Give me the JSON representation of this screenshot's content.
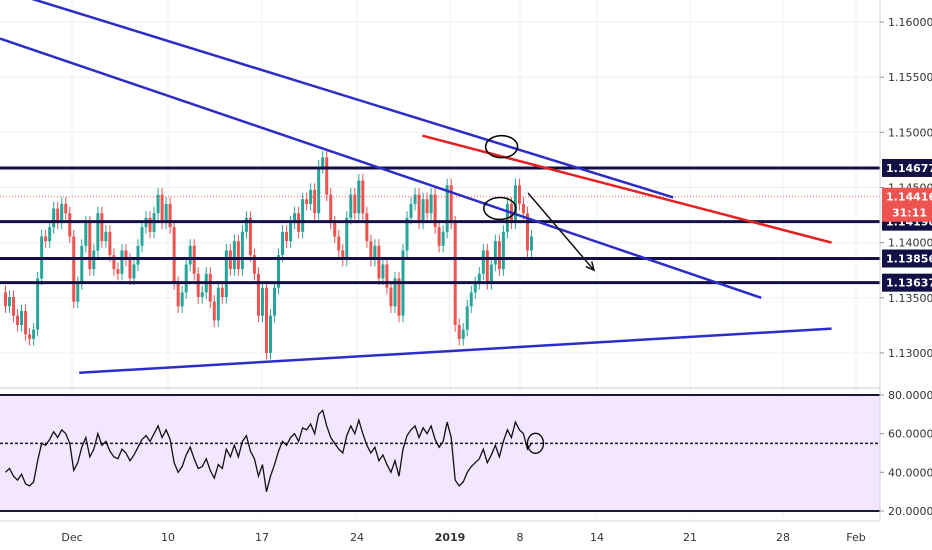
{
  "chart_data": [
    {
      "type": "candlestick",
      "instrument_hint": "price",
      "price_axis": {
        "ylim": [
          1.127,
          1.162
        ],
        "ticks": [
          "1.16000",
          "1.15500",
          "1.15000",
          "1.14500",
          "1.14000",
          "1.13500",
          "1.13000"
        ],
        "tick_values": [
          1.16,
          1.155,
          1.15,
          1.145,
          1.14,
          1.135,
          1.13
        ]
      },
      "x_axis": {
        "labels": [
          "Dec",
          "10",
          "17",
          "24",
          "2019",
          "8",
          "14",
          "21",
          "28",
          "Feb"
        ],
        "bold_labels": [
          "2019"
        ]
      },
      "current_price": {
        "value": 1.14416,
        "label": "1.14416",
        "countdown": "31:11",
        "color": "#ef5350"
      },
      "horizontal_levels": [
        {
          "value": 1.14677,
          "label": "1.14677"
        },
        {
          "value": 1.1419,
          "label": "1.14190"
        },
        {
          "value": 1.13856,
          "label": "1.13856"
        },
        {
          "value": 1.13637,
          "label": "1.13637"
        }
      ],
      "trendlines": [
        {
          "name": "upper",
          "color": "#2c2cc8",
          "from": [
            0,
            1.163
          ],
          "to": [
            0.765,
            1.1441
          ]
        },
        {
          "name": "middle",
          "color": "#2c2cc8",
          "from": [
            0,
            1.1585
          ],
          "to": [
            0.865,
            1.135
          ]
        },
        {
          "name": "lower",
          "color": "#2c2cc8",
          "from": [
            0.09,
            1.1282
          ],
          "to": [
            0.945,
            1.1322
          ]
        },
        {
          "name": "red",
          "color": "#e62020",
          "from": [
            0.48,
            1.1497
          ],
          "to": [
            0.945,
            1.14
          ]
        }
      ],
      "arrow": {
        "from": [
          0.6,
          1.1445
        ],
        "to": [
          0.675,
          1.1375
        ]
      },
      "ellipses": [
        {
          "cx": 0.57,
          "cy": 1.1487
        },
        {
          "cx": 0.568,
          "cy": 1.1431
        }
      ],
      "colors": {
        "up": "#26a69a",
        "down": "#ef5350",
        "levels": "#131045",
        "trend": "#2c2cc8"
      }
    },
    {
      "type": "line",
      "indicator": "oscillator",
      "ylim": [
        20,
        80
      ],
      "ticks": [
        "80.0000",
        "60.0000",
        "40.0000",
        "20.0000"
      ],
      "tick_values": [
        80,
        60,
        40,
        20
      ],
      "reference_line": 55,
      "values": [
        40,
        42,
        38,
        36,
        39,
        34,
        33,
        35,
        46,
        55,
        54,
        57,
        61,
        58,
        62,
        60,
        55,
        41,
        45,
        53,
        58,
        48,
        52,
        60,
        54,
        56,
        51,
        48,
        47,
        52,
        50,
        46,
        49,
        53,
        57,
        59,
        56,
        60,
        64,
        58,
        62,
        57,
        45,
        40,
        43,
        49,
        53,
        47,
        42,
        43,
        47,
        41,
        37,
        44,
        42,
        52,
        48,
        54,
        48,
        56,
        59,
        51,
        47,
        38,
        44,
        30,
        38,
        44,
        51,
        56,
        54,
        58,
        60,
        56,
        63,
        62,
        65,
        60,
        70,
        72,
        64,
        58,
        55,
        52,
        50,
        59,
        64,
        60,
        67,
        60,
        54,
        50,
        53,
        46,
        49,
        44,
        40,
        46,
        38,
        52,
        59,
        62,
        64,
        58,
        63,
        60,
        64,
        57,
        53,
        56,
        66,
        58,
        36,
        33,
        35,
        40,
        43,
        45,
        47,
        52,
        45,
        49,
        54,
        48,
        56,
        62,
        58,
        66,
        62,
        60,
        52,
        55
      ]
    }
  ]
}
